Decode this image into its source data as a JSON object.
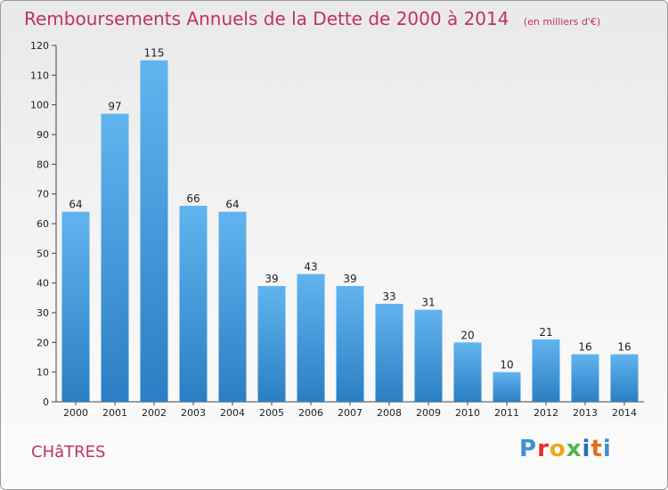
{
  "header": {
    "title": "Remboursements Annuels de la Dette de 2000 à 2014",
    "unit": "(en milliers d'€)"
  },
  "footer": {
    "commune": "CHâTRES",
    "brand": "Proxiti"
  },
  "colors": {
    "title": "#c0306a",
    "bar_top": "#62b4ee",
    "bar_bottom": "#2a7fc4"
  },
  "chart_data": {
    "type": "bar",
    "title": "Remboursements Annuels de la Dette de 2000 à 2014",
    "xlabel": "",
    "ylabel": "",
    "categories": [
      "2000",
      "2001",
      "2002",
      "2003",
      "2004",
      "2005",
      "2006",
      "2007",
      "2008",
      "2009",
      "2010",
      "2011",
      "2012",
      "2013",
      "2014"
    ],
    "values": [
      64,
      97,
      115,
      66,
      64,
      39,
      43,
      39,
      33,
      31,
      20,
      10,
      21,
      16,
      16
    ],
    "ylim": [
      0,
      120
    ],
    "yticks": [
      0,
      10,
      20,
      30,
      40,
      50,
      60,
      70,
      80,
      90,
      100,
      110,
      120
    ],
    "grid": false,
    "legend": "none"
  }
}
